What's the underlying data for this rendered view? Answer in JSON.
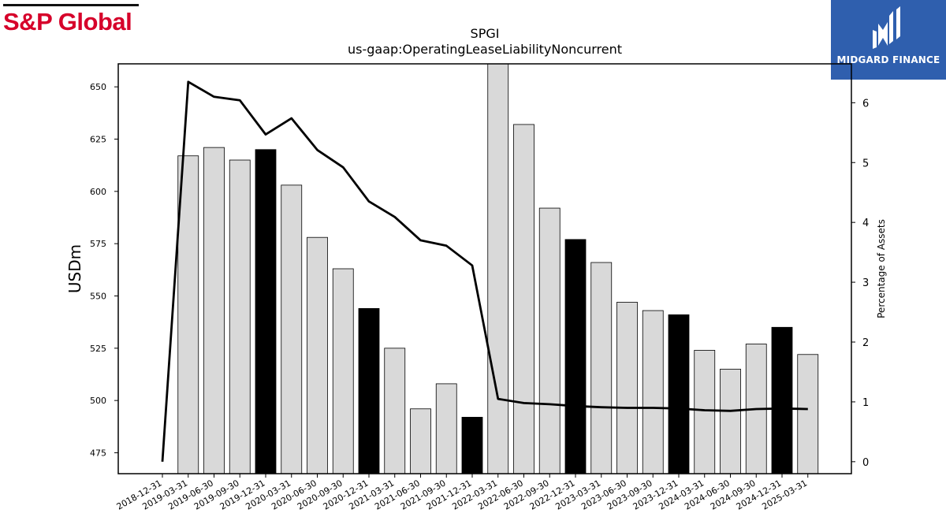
{
  "branding": {
    "left_logo_text": "S&P Global",
    "right_logo_text": "MIDGARD FINANCE",
    "right_logo_bg": "#2f5fae",
    "left_logo_color": "#d6002a"
  },
  "chart_data": {
    "type": "bar",
    "title": "SPGI",
    "subtitle": "us-gaap:OperatingLeaseLiabilityNoncurrent",
    "ylabel": "USDm",
    "y2label": "Percentage of Assets",
    "ylim": [
      465,
      661
    ],
    "y2lim": [
      -0.2,
      6.65
    ],
    "yticks": [
      475,
      500,
      525,
      550,
      575,
      600,
      625,
      650
    ],
    "y2ticks": [
      0,
      1,
      2,
      3,
      4,
      5,
      6
    ],
    "categories": [
      "2018-12-31",
      "2019-03-31",
      "2019-06-30",
      "2019-09-30",
      "2019-12-31",
      "2020-03-31",
      "2020-06-30",
      "2020-09-30",
      "2020-12-31",
      "2021-03-31",
      "2021-06-30",
      "2021-09-30",
      "2021-12-31",
      "2022-03-31",
      "2022-06-30",
      "2022-09-30",
      "2022-12-31",
      "2023-03-31",
      "2023-06-30",
      "2023-09-30",
      "2023-12-31",
      "2024-03-31",
      "2024-06-30",
      "2024-09-30",
      "2024-12-31",
      "2025-03-31"
    ],
    "series": [
      {
        "type": "bar",
        "values": [
          null,
          617,
          621,
          615,
          620,
          603,
          578,
          563,
          544,
          525,
          496,
          508,
          492,
          661,
          632,
          592,
          577,
          566,
          547,
          543,
          541,
          524,
          515,
          527,
          535,
          522
        ],
        "colors": [
          "#d9d9d9",
          "#d9d9d9",
          "#d9d9d9",
          "#d9d9d9",
          "#000000",
          "#d9d9d9",
          "#d9d9d9",
          "#d9d9d9",
          "#000000",
          "#d9d9d9",
          "#d9d9d9",
          "#d9d9d9",
          "#000000",
          "#d9d9d9",
          "#d9d9d9",
          "#d9d9d9",
          "#000000",
          "#d9d9d9",
          "#d9d9d9",
          "#d9d9d9",
          "#000000",
          "#d9d9d9",
          "#d9d9d9",
          "#d9d9d9",
          "#000000",
          "#d9d9d9"
        ]
      },
      {
        "type": "line",
        "axis": "right",
        "color": "#000000",
        "values": [
          0,
          6.35,
          6.1,
          6.04,
          5.47,
          5.74,
          5.21,
          4.92,
          4.35,
          4.09,
          3.7,
          3.61,
          3.28,
          1.05,
          0.98,
          0.96,
          0.93,
          0.91,
          0.9,
          0.9,
          0.89,
          0.86,
          0.85,
          0.88,
          0.89,
          0.88
        ]
      }
    ],
    "grid": false,
    "legend": "none"
  }
}
